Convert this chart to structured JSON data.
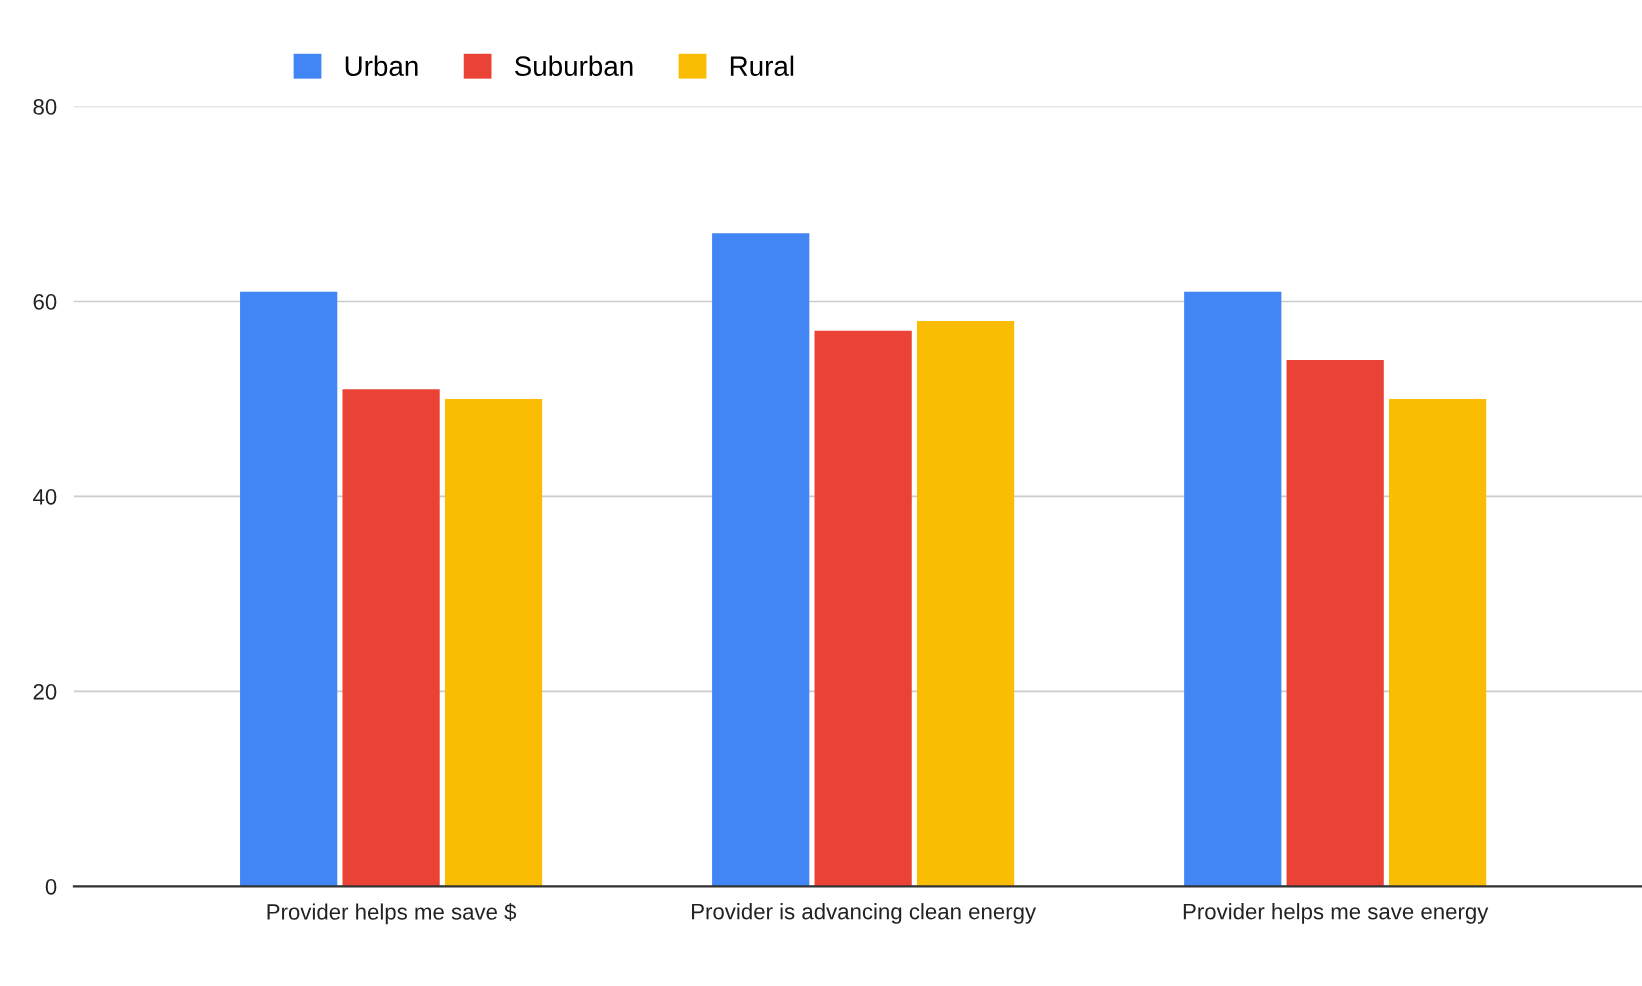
{
  "chart_data": {
    "type": "bar",
    "categories": [
      "Provider helps me save $",
      "Provider is advancing clean energy",
      "Provider helps me save energy"
    ],
    "series": [
      {
        "name": "Urban",
        "color": "#4285f4",
        "values": [
          61,
          67,
          61
        ]
      },
      {
        "name": "Suburban",
        "color": "#ea4335",
        "values": [
          51,
          57,
          54
        ]
      },
      {
        "name": "Rural",
        "color": "#fbbc04",
        "values": [
          50,
          58,
          50
        ]
      }
    ],
    "ylim": [
      0,
      80
    ],
    "yticks": [
      0,
      20,
      40,
      60,
      80
    ],
    "grid": "y",
    "legend": "top"
  }
}
